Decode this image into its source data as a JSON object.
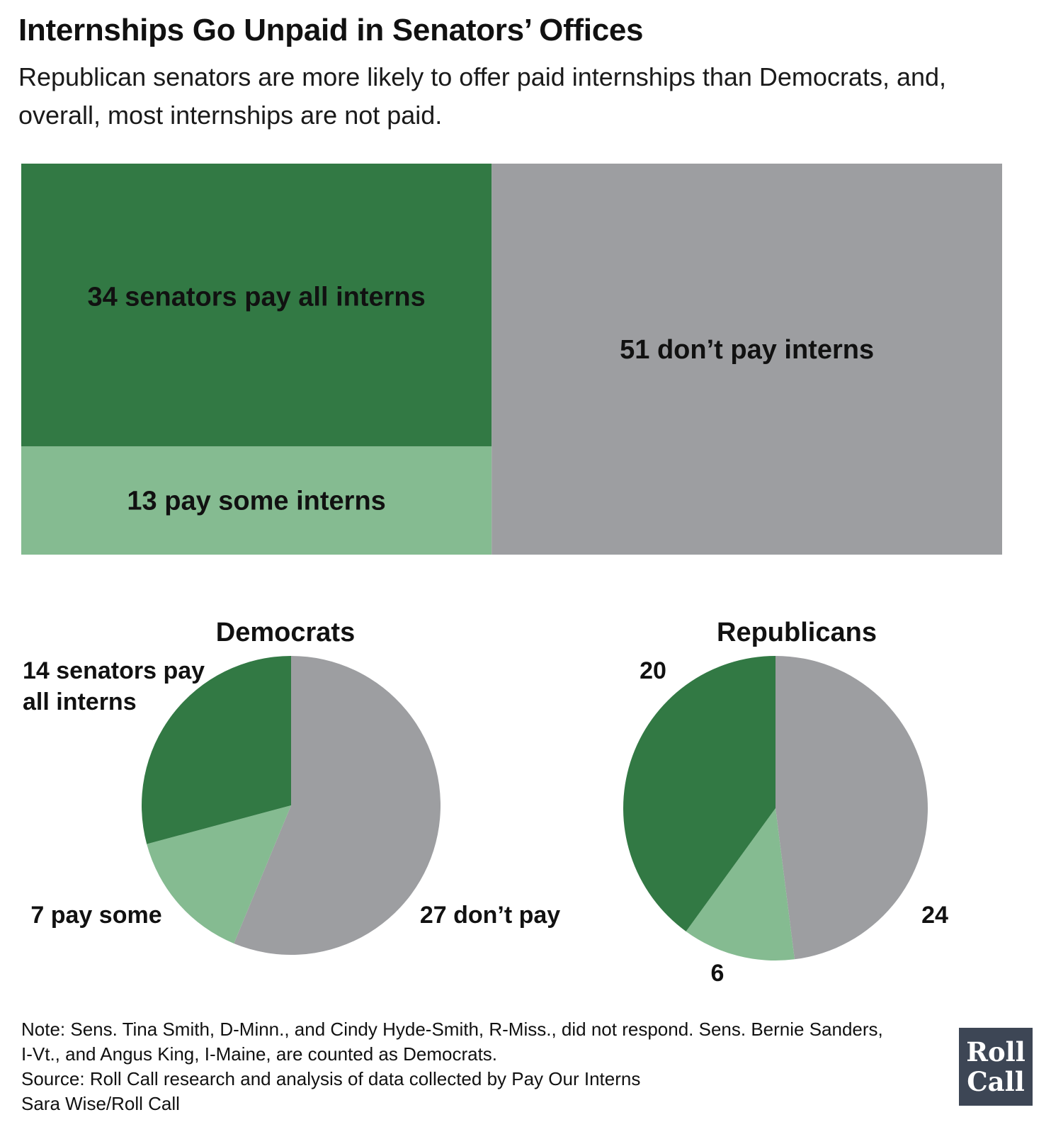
{
  "header": {
    "title": "Internships Go Unpaid in Senators’ Offices",
    "subtitle": "Republican senators are more likely to offer paid internships than Democrats, and, overall, most internships are not paid."
  },
  "colors": {
    "pay_all": "#327944",
    "pay_some": "#85bb91",
    "dont_pay": "#9d9ea1"
  },
  "chart_data": [
    {
      "type": "treemap",
      "segments": [
        {
          "value": 34,
          "label": "34 senators pay all interns",
          "color": "#327944"
        },
        {
          "value": 13,
          "label": "13 pay some interns",
          "color": "#85bb91"
        },
        {
          "value": 51,
          "label": "51 don’t pay interns",
          "color": "#9d9ea1"
        }
      ]
    },
    {
      "type": "pie",
      "title": "Democrats",
      "slices": [
        {
          "value": 27,
          "label": "27 don’t pay",
          "color": "#9d9ea1"
        },
        {
          "value": 7,
          "label": "7 pay some",
          "color": "#85bb91"
        },
        {
          "value": 14,
          "label": "14 senators pay all interns",
          "color": "#327944"
        }
      ]
    },
    {
      "type": "pie",
      "title": "Republicans",
      "slices": [
        {
          "value": 24,
          "label": "24",
          "color": "#9d9ea1"
        },
        {
          "value": 6,
          "label": "6",
          "color": "#85bb91"
        },
        {
          "value": 20,
          "label": "20",
          "color": "#327944"
        }
      ]
    }
  ],
  "footer": {
    "note_line1": "Note: Sens. Tina Smith, D-Minn., and Cindy Hyde-Smith, R-Miss., did not respond. Sens. Bernie Sanders,",
    "note_line2": "I-Vt., and Angus King, I-Maine, are counted as Democrats.",
    "source": "Source: Roll Call research and analysis of data collected by Pay Our Interns",
    "credit": "Sara Wise/Roll Call",
    "logo_line1": "Roll",
    "logo_line2": "Call"
  }
}
